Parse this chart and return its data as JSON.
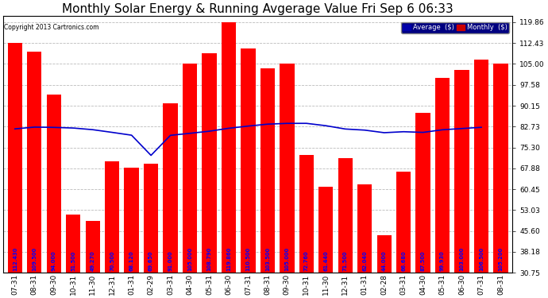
{
  "title": "Monthly Solar Energy & Running Avgerage Value Fri Sep 6 06:33",
  "copyright": "Copyright 2013 Cartronics.com",
  "categories": [
    "07-31",
    "08-31",
    "09-30",
    "10-31",
    "11-30",
    "12-31",
    "01-31",
    "02-29",
    "03-31",
    "04-30",
    "05-31",
    "06-30",
    "07-31",
    "08-31",
    "09-30",
    "10-31",
    "11-30",
    "12-31",
    "01-31",
    "02-28",
    "03-31",
    "04-30",
    "05-31",
    "06-30",
    "07-31",
    "08-31"
  ],
  "bar_values": [
    112.43,
    109.5,
    94.0,
    51.5,
    49.27,
    70.5,
    68.12,
    69.65,
    91.0,
    105.0,
    108.79,
    119.86,
    110.5,
    103.5,
    105.0,
    72.76,
    61.44,
    71.5,
    62.04,
    44.0,
    66.68,
    87.5,
    99.93,
    103.0,
    106.5,
    105.2
  ],
  "avg_values": [
    81.912,
    82.541,
    82.445,
    82.21,
    81.627,
    80.669,
    79.665,
    72.491,
    79.612,
    80.333,
    81.079,
    82.127,
    82.905,
    83.589,
    83.868,
    83.876,
    83.041,
    81.865,
    81.468,
    80.555,
    80.903,
    80.667,
    81.593,
    82.034,
    82.469
  ],
  "yticks": [
    30.75,
    38.18,
    45.6,
    53.03,
    60.45,
    67.88,
    75.3,
    82.73,
    90.15,
    97.58,
    105.0,
    112.43,
    119.86
  ],
  "bar_color": "#ff0000",
  "avg_line_color": "#0000cc",
  "background_color": "#ffffff",
  "title_fontsize": 11,
  "label_fontsize": 6.5,
  "bar_label_fontsize": 4.8,
  "grid_color": "#bbbbbb",
  "ymin": 30.75,
  "ymax": 122.0
}
